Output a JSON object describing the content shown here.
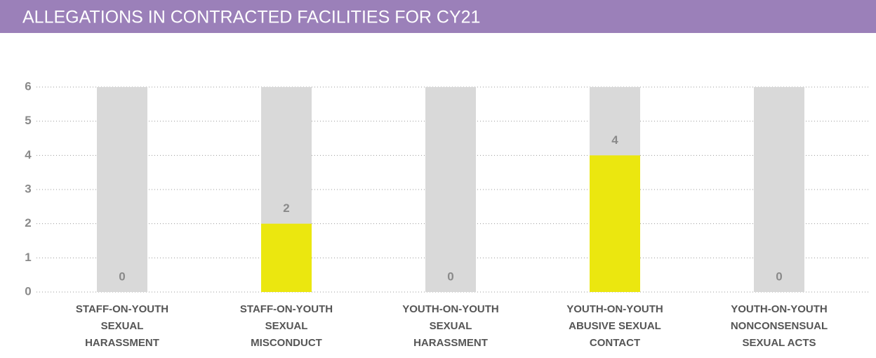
{
  "chart_data": {
    "type": "bar",
    "title": "ALLEGATIONS IN CONTRACTED FACILITIES FOR CY21",
    "categories": [
      [
        "STAFF-ON-YOUTH",
        "SEXUAL",
        "HARASSMENT"
      ],
      [
        "STAFF-ON-YOUTH",
        "SEXUAL",
        "MISCONDUCT"
      ],
      [
        "YOUTH-ON-YOUTH",
        "SEXUAL",
        "HARASSMENT"
      ],
      [
        "YOUTH-ON-YOUTH",
        "ABUSIVE SEXUAL",
        "CONTACT"
      ],
      [
        "YOUTH-ON-YOUTH",
        "NONCONSENSUAL",
        "SEXUAL ACTS"
      ]
    ],
    "values": [
      0,
      2,
      0,
      4,
      0
    ],
    "color": "#ebe70f",
    "background_color": "#d9d9d9",
    "header_color": "#9b80b9",
    "ylim": [
      0,
      6
    ],
    "yticks": [
      0,
      1,
      2,
      3,
      4,
      5,
      6
    ],
    "grid": true
  }
}
